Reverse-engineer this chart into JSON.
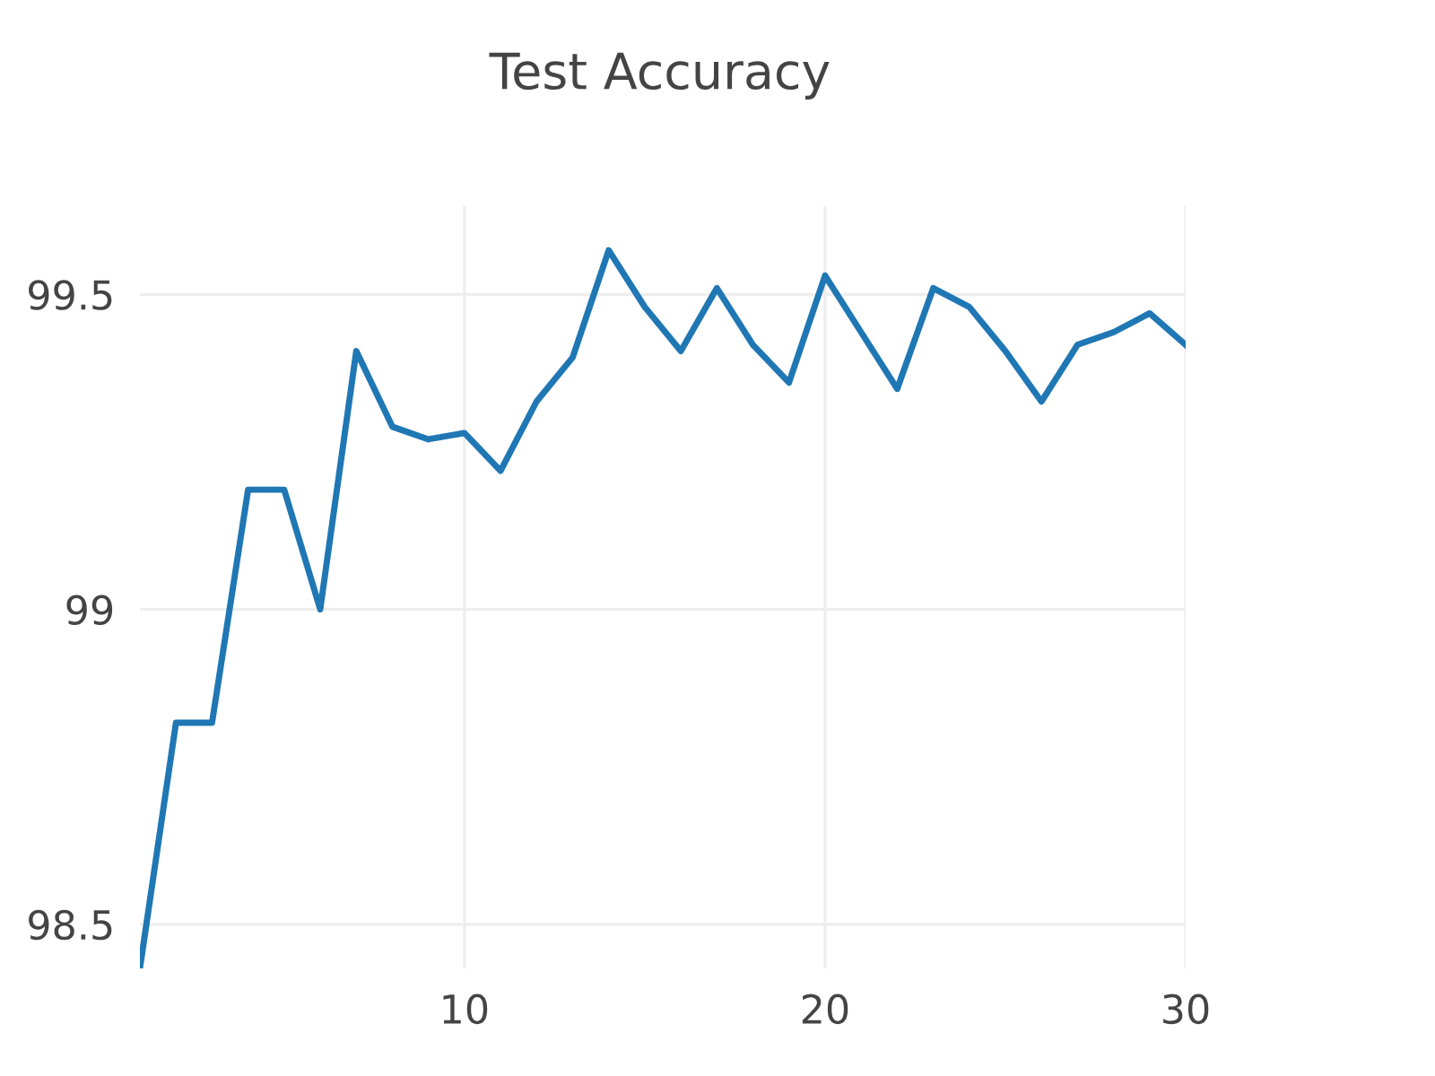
{
  "chart_data": {
    "type": "line",
    "title": "Test Accuracy",
    "x": [
      1,
      2,
      3,
      4,
      5,
      6,
      7,
      8,
      9,
      10,
      11,
      12,
      13,
      14,
      15,
      16,
      17,
      18,
      19,
      20,
      21,
      22,
      23,
      24,
      25,
      26,
      27,
      28,
      29,
      30
    ],
    "series": [
      {
        "color": "#1f77b4",
        "values": [
          98.43,
          98.82,
          98.82,
          99.19,
          99.19,
          99.0,
          99.41,
          99.29,
          99.27,
          99.28,
          99.22,
          99.33,
          99.4,
          99.57,
          99.48,
          99.41,
          99.51,
          99.42,
          99.36,
          99.53,
          99.44,
          99.35,
          99.51,
          99.48,
          99.41,
          99.33,
          99.42,
          99.44,
          99.47,
          99.42
        ]
      }
    ],
    "xlim": [
      1,
      30
    ],
    "xticks": [
      10,
      20,
      30
    ],
    "ylim": [
      98.43,
      99.64
    ],
    "yticks": [
      98.5,
      99,
      99.5
    ],
    "grid": true,
    "legend": false,
    "marker": "none",
    "line_style": "solid"
  }
}
